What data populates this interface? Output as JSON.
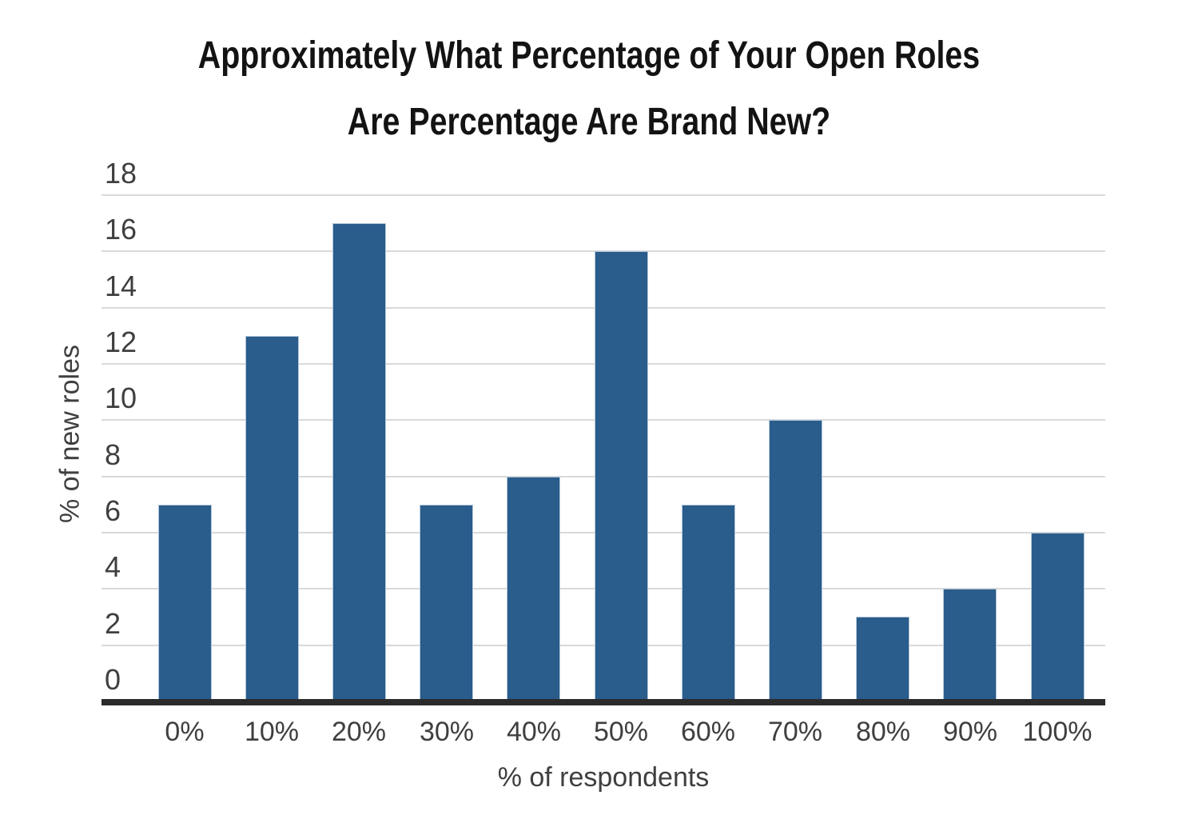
{
  "chart_data": {
    "type": "bar",
    "title": "Approximately What Percentage of Your Open Roles Are Percentage Are Brand New?",
    "title_line1": "Approximately What Percentage of Your Open Roles",
    "title_line2": "Are Percentage Are Brand New?",
    "categories": [
      "0%",
      "10%",
      "20%",
      "30%",
      "40%",
      "50%",
      "60%",
      "70%",
      "80%",
      "90%",
      "100%"
    ],
    "values": [
      7,
      13,
      17,
      7,
      8,
      16,
      7,
      10,
      3,
      4,
      6
    ],
    "xlabel": "% of respondents",
    "ylabel": "% of new roles",
    "ylim": [
      0,
      18
    ],
    "yticks": [
      0,
      2,
      4,
      6,
      8,
      10,
      12,
      14,
      16,
      18
    ],
    "grid": "horizontal-only",
    "legend": "none",
    "bar_color": "#2a5c8c",
    "bar_border_color": "#b5c8d9",
    "gridline_color": "#d9d9d9",
    "axis_line_color": "#2b2b2b",
    "tick_text_color": "#3f3f3f",
    "title_text_color": "#131313"
  }
}
